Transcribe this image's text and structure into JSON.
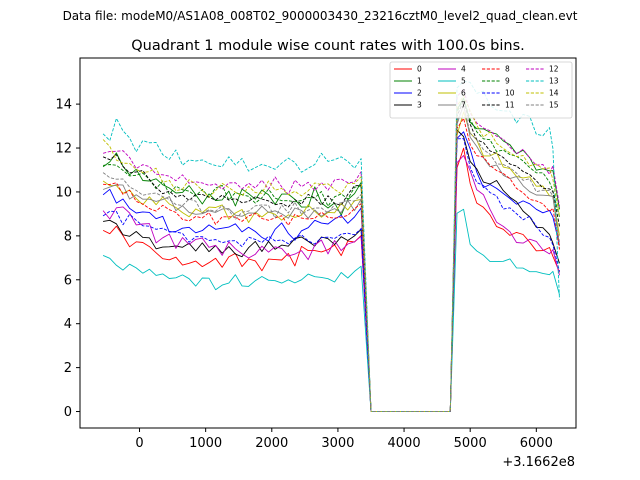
{
  "figure": {
    "suptitle": "Data file: modeM0/AS1A08_008T02_9000003430_23216cztM0_level2_quad_clean.evt"
  },
  "chart_data": {
    "type": "line",
    "title": "Quadrant 1 module wise count rates with 100.0s bins.",
    "xlabel": "",
    "ylabel": "",
    "x_offset_label": "+3.1662e8",
    "xlim": [
      -900,
      6600
    ],
    "ylim": [
      -0.75,
      16.1
    ],
    "xticks": [
      0,
      1000,
      2000,
      3000,
      4000,
      5000,
      6000
    ],
    "xtick_labels": [
      "0",
      "1000",
      "2000",
      "3000",
      "4000",
      "5000",
      "6000"
    ],
    "yticks": [
      0,
      2,
      4,
      6,
      8,
      10,
      12,
      14
    ],
    "ytick_labels": [
      "0",
      "2",
      "4",
      "6",
      "8",
      "10",
      "12",
      "14"
    ],
    "grid": false,
    "legend_position": "top-right",
    "gap": [
      3500,
      4700
    ],
    "x_seg1": [
      -550,
      -450,
      -350,
      -250,
      -150,
      -50,
      50,
      150,
      250,
      350,
      450,
      550,
      650,
      750,
      850,
      950,
      1050,
      1150,
      1250,
      1350,
      1450,
      1550,
      1650,
      1750,
      1850,
      1950,
      2050,
      2150,
      2250,
      2350,
      2450,
      2550,
      2650,
      2750,
      2850,
      2950,
      3050,
      3150,
      3250,
      3350,
      3500
    ],
    "x_seg2": [
      4700,
      4800,
      4900,
      5000,
      5100,
      5200,
      5300,
      5400,
      5500,
      5600,
      5700,
      5800,
      5900,
      6000,
      6100,
      6200,
      6250,
      6350
    ],
    "series": [
      {
        "name": "0",
        "color": "#ff0000",
        "dash": "solid",
        "rate1": [
          8.25,
          8.1,
          8.44,
          8.01,
          7.5,
          7.73,
          7.7,
          7.51,
          7.23,
          6.96,
          6.91,
          7.03,
          6.67,
          6.75,
          6.85,
          6.6,
          6.78,
          6.98,
          6.57,
          7.04,
          7.2,
          6.6,
          6.95,
          6.86,
          6.41,
          6.94,
          6.92,
          6.9,
          7.2,
          6.63,
          7.52,
          7.33,
          7.33,
          7.27,
          7.37,
          7.59,
          7.1,
          7.76,
          7.72,
          8.01,
          0.0
        ],
        "rate2": [
          0.0,
          11.1,
          11.99,
          10.38,
          9.49,
          9.3,
          8.96,
          8.42,
          8.3,
          8.02,
          8.16,
          8.06,
          7.71,
          7.32,
          7.33,
          7.47,
          7.07,
          6.34
        ]
      },
      {
        "name": "1",
        "color": "#008000",
        "dash": "solid",
        "rate1": [
          11.15,
          11.37,
          11.78,
          11.17,
          10.78,
          11.03,
          10.52,
          10.5,
          10.6,
          10.33,
          10.18,
          9.95,
          9.98,
          10.29,
          9.88,
          9.45,
          9.91,
          9.61,
          9.64,
          10.04,
          9.36,
          10.13,
          9.92,
          9.67,
          10.09,
          9.87,
          9.44,
          9.9,
          9.9,
          9.66,
          9.31,
          9.32,
          10.23,
          9.5,
          9.27,
          9.5,
          8.94,
          9.65,
          9.92,
          10.43,
          0.0
        ],
        "rate2": [
          0.0,
          13.75,
          14.27,
          13.17,
          12.88,
          12.87,
          12.72,
          12.64,
          12.32,
          12.15,
          11.74,
          11.9,
          11.56,
          10.99,
          11.06,
          10.96,
          10.97,
          9.21
        ]
      },
      {
        "name": "2",
        "color": "#0000ff",
        "dash": "solid",
        "rate1": [
          9.87,
          10.12,
          9.49,
          9.68,
          9.25,
          9.04,
          9.09,
          9.07,
          8.78,
          8.89,
          8.17,
          8.2,
          8.35,
          8.39,
          8.14,
          8.24,
          8.5,
          8.3,
          8.35,
          8.4,
          8.55,
          8.18,
          8.39,
          8.2,
          7.93,
          7.76,
          8.3,
          8.59,
          8.11,
          7.8,
          8.23,
          8.37,
          8.71,
          8.58,
          8.54,
          8.77,
          8.93,
          8.57,
          8.86,
          9.27,
          0.0
        ],
        "rate2": [
          0.0,
          12.44,
          12.74,
          11.95,
          10.9,
          10.2,
          10.34,
          10.16,
          9.93,
          9.7,
          9.44,
          9.59,
          9.46,
          9.21,
          9.05,
          9.16,
          8.86,
          7.56
        ]
      },
      {
        "name": "3",
        "color": "#000000",
        "dash": "solid",
        "rate1": [
          8.66,
          8.71,
          8.55,
          8.05,
          7.98,
          8.2,
          7.93,
          7.91,
          7.41,
          7.49,
          7.5,
          7.54,
          7.48,
          7.66,
          7.31,
          7.68,
          7.28,
          7.56,
          7.21,
          7.51,
          7.17,
          7.05,
          7.46,
          7.75,
          7.29,
          7.75,
          7.39,
          7.58,
          7.53,
          7.88,
          7.95,
          7.75,
          7.54,
          7.95,
          7.87,
          7.6,
          7.96,
          7.79,
          8.0,
          8.3,
          0.0
        ],
        "rate2": [
          0.0,
          12.82,
          12.52,
          11.38,
          11.05,
          10.45,
          10.36,
          10.52,
          10.06,
          9.76,
          9.55,
          9.13,
          8.87,
          8.39,
          8.37,
          8.06,
          7.67,
          6.75
        ]
      },
      {
        "name": "4",
        "color": "#bf00bf",
        "dash": "solid",
        "rate1": [
          9.15,
          8.77,
          9.28,
          9.32,
          9.04,
          8.5,
          8.54,
          8.56,
          7.68,
          7.91,
          8.08,
          7.43,
          7.92,
          7.61,
          7.84,
          7.9,
          7.48,
          7.57,
          7.11,
          7.72,
          7.41,
          7.18,
          6.99,
          7.16,
          7.53,
          7.26,
          7.5,
          7.43,
          7.08,
          7.17,
          7.33,
          6.92,
          7.58,
          7.81,
          7.18,
          7.79,
          7.33,
          7.63,
          7.73,
          7.98,
          0.0
        ],
        "rate2": [
          0.0,
          11.33,
          11.66,
          10.96,
          10.1,
          9.88,
          9.21,
          8.62,
          8.43,
          8.19,
          7.7,
          7.67,
          7.85,
          7.75,
          7.36,
          7.18,
          7.37,
          6.21
        ]
      },
      {
        "name": "5",
        "color": "#00bfbf",
        "dash": "solid",
        "rate1": [
          7.11,
          6.98,
          6.66,
          6.44,
          6.71,
          6.54,
          6.3,
          6.48,
          6.2,
          6.27,
          6.06,
          6.09,
          6.22,
          6.05,
          5.71,
          6.08,
          6.07,
          5.55,
          5.76,
          5.85,
          6.23,
          5.72,
          5.7,
          5.96,
          6.15,
          5.98,
          5.96,
          5.85,
          6.0,
          5.86,
          6.0,
          6.26,
          6.14,
          6.11,
          6.05,
          5.9,
          6.33,
          6.08,
          6.38,
          6.62,
          0.0
        ],
        "rate2": [
          0.0,
          9.03,
          9.21,
          7.61,
          7.31,
          7.12,
          6.83,
          6.83,
          6.84,
          6.95,
          6.54,
          6.53,
          6.37,
          6.37,
          6.29,
          6.23,
          6.38,
          5.32
        ]
      },
      {
        "name": "6",
        "color": "#bfbf00",
        "dash": "solid",
        "rate1": [
          10.5,
          10.29,
          10.29,
          9.94,
          10.09,
          9.7,
          9.42,
          9.78,
          9.42,
          9.77,
          9.45,
          9.29,
          9.06,
          8.87,
          9.23,
          9.06,
          9.31,
          9.29,
          9.41,
          8.76,
          9.04,
          9.2,
          8.61,
          9.08,
          8.86,
          9.09,
          8.98,
          8.72,
          8.96,
          8.84,
          8.94,
          9.41,
          9.12,
          8.85,
          9.07,
          9.05,
          9.48,
          9.18,
          9.6,
          9.66,
          0.0
        ],
        "rate2": [
          0.0,
          12.58,
          13.64,
          12.68,
          12.37,
          11.64,
          11.64,
          11.79,
          11.13,
          11.07,
          10.71,
          10.64,
          10.69,
          10.26,
          10.27,
          9.83,
          9.8,
          8.01
        ]
      },
      {
        "name": "7",
        "color": "#808080",
        "dash": "solid",
        "rate1": [
          10.11,
          10.22,
          10.33,
          10.31,
          9.68,
          9.87,
          9.67,
          9.67,
          9.57,
          9.65,
          9.79,
          9.15,
          9.37,
          9.07,
          8.98,
          9.01,
          9.14,
          9.07,
          9.22,
          9.24,
          8.94,
          8.89,
          9.04,
          9.03,
          9.35,
          9.07,
          9.14,
          9.0,
          8.8,
          9.27,
          9.16,
          8.8,
          9.18,
          8.89,
          9.11,
          9.24,
          9.06,
          9.61,
          9.15,
          9.67,
          0.0
        ],
        "rate2": [
          0.0,
          13.08,
          13.96,
          12.49,
          12.07,
          11.56,
          11.15,
          11.23,
          10.76,
          10.61,
          10.7,
          10.28,
          10.01,
          9.86,
          9.85,
          9.83,
          9.79,
          7.55
        ]
      },
      {
        "name": "8",
        "color": "#ff0000",
        "dash": "dashed",
        "rate1": [
          10.35,
          10.34,
          10.42,
          9.89,
          10.08,
          9.57,
          9.45,
          9.24,
          9.13,
          9.39,
          9.19,
          9.07,
          8.75,
          8.68,
          8.88,
          8.82,
          9.06,
          8.52,
          8.87,
          8.87,
          8.86,
          8.66,
          8.91,
          9.02,
          8.79,
          8.71,
          8.82,
          8.92,
          8.48,
          8.98,
          8.81,
          8.77,
          8.8,
          9.08,
          8.84,
          8.81,
          8.85,
          8.93,
          9.24,
          9.46,
          0.0
        ],
        "rate2": [
          0.0,
          12.89,
          13.35,
          12.15,
          11.65,
          11.59,
          11.21,
          10.97,
          10.84,
          10.61,
          10.16,
          9.96,
          9.66,
          9.59,
          9.46,
          9.11,
          9.26,
          7.38
        ]
      },
      {
        "name": "9",
        "color": "#008000",
        "dash": "dashed",
        "rate1": [
          11.21,
          11.25,
          11.22,
          10.98,
          10.73,
          10.76,
          10.86,
          10.57,
          10.15,
          10.5,
          9.9,
          10.26,
          10.1,
          10.04,
          9.81,
          10.12,
          9.76,
          10.18,
          10.3,
          9.64,
          9.97,
          9.88,
          9.8,
          9.49,
          9.74,
          10.13,
          9.72,
          9.6,
          9.6,
          9.55,
          9.61,
          9.75,
          9.73,
          10.02,
          9.35,
          9.78,
          9.91,
          9.68,
          10.21,
          10.28,
          0.0
        ],
        "rate2": [
          0.0,
          13.64,
          14.25,
          13.3,
          12.74,
          12.42,
          12.38,
          11.84,
          11.91,
          11.7,
          11.63,
          11.41,
          11.11,
          10.87,
          10.87,
          10.45,
          10.05,
          8.86
        ]
      },
      {
        "name": "10",
        "color": "#0000ff",
        "dash": "dashed",
        "rate1": [
          8.91,
          9.12,
          9.11,
          8.51,
          8.98,
          8.71,
          8.46,
          8.44,
          8.3,
          8.35,
          8.2,
          8.17,
          8.11,
          7.71,
          7.96,
          7.96,
          7.79,
          7.83,
          7.69,
          7.77,
          7.78,
          7.51,
          7.94,
          7.84,
          7.7,
          7.98,
          7.77,
          7.82,
          7.64,
          7.9,
          8.05,
          7.77,
          7.63,
          7.92,
          7.94,
          7.88,
          8.08,
          8.12,
          8.05,
          8.33,
          0.0
        ],
        "rate2": [
          0.0,
          12.42,
          12.43,
          11.12,
          10.43,
          10.29,
          9.97,
          9.82,
          9.22,
          9.28,
          9.01,
          8.73,
          8.89,
          8.44,
          8.04,
          7.93,
          7.59,
          6.38
        ]
      },
      {
        "name": "11",
        "color": "#000000",
        "dash": "dashed",
        "rate1": [
          11.6,
          11.47,
          11.7,
          11.16,
          10.87,
          10.91,
          10.98,
          10.56,
          10.21,
          9.92,
          10.04,
          9.77,
          9.87,
          9.61,
          9.88,
          9.89,
          9.75,
          9.63,
          9.86,
          9.63,
          9.7,
          9.51,
          9.57,
          9.78,
          9.68,
          9.59,
          9.42,
          9.48,
          9.32,
          9.65,
          9.44,
          9.89,
          9.72,
          9.39,
          9.83,
          9.47,
          9.39,
          9.89,
          10.28,
          10.3,
          0.0
        ],
        "rate2": [
          0.0,
          13.45,
          14.16,
          13.08,
          12.37,
          12.25,
          11.87,
          11.75,
          11.57,
          11.27,
          11.18,
          10.93,
          10.79,
          10.51,
          10.17,
          10.14,
          10.02,
          8.43
        ]
      },
      {
        "name": "12",
        "color": "#bf00bf",
        "dash": "dashed",
        "rate1": [
          11.76,
          11.84,
          11.85,
          11.88,
          11.57,
          11.07,
          11.24,
          11.16,
          10.81,
          10.78,
          10.72,
          10.51,
          10.78,
          10.4,
          10.46,
          10.41,
          10.3,
          10.36,
          10.12,
          10.41,
          10.42,
          10.14,
          10.4,
          10.18,
          10.54,
          10.13,
          10.68,
          10.23,
          9.89,
          10.54,
          10.24,
          10.44,
          10.05,
          10.43,
          10.08,
          10.55,
          10.59,
          10.42,
          10.45,
          10.92,
          0.0
        ],
        "rate2": [
          0.0,
          14.34,
          14.68,
          13.59,
          13.14,
          12.91,
          12.79,
          12.54,
          12.41,
          12.04,
          11.74,
          11.94,
          11.54,
          11.22,
          11.25,
          10.8,
          11.2,
          9.34
        ]
      },
      {
        "name": "13",
        "color": "#00bfbf",
        "dash": "dashed",
        "rate1": [
          12.65,
          12.34,
          13.35,
          12.78,
          12.46,
          11.83,
          12.34,
          12.24,
          12.25,
          11.7,
          11.48,
          11.91,
          11.22,
          11.46,
          11.41,
          11.46,
          11.3,
          11.2,
          11.15,
          11.6,
          11.23,
          11.53,
          10.95,
          11.11,
          11.26,
          11.16,
          11.03,
          11.31,
          11.54,
          11.34,
          10.9,
          11.08,
          11.25,
          11.76,
          11.39,
          11.47,
          11.6,
          11.39,
          11.08,
          11.52,
          0.0
        ],
        "rate2": [
          0.0,
          14.74,
          15.04,
          14.99,
          14.49,
          14.59,
          13.94,
          13.73,
          13.69,
          13.68,
          13.15,
          13.53,
          13.44,
          12.63,
          12.56,
          12.93,
          11.98,
          5.1
        ]
      },
      {
        "name": "14",
        "color": "#bfbf00",
        "dash": "dashed",
        "rate1": [
          12.39,
          12.07,
          11.45,
          11.31,
          11.3,
          11.03,
          10.88,
          10.93,
          11.08,
          10.43,
          10.53,
          10.05,
          10.13,
          10.56,
          10.36,
          10.07,
          9.76,
          10.06,
          10.39,
          10.2,
          9.99,
          9.82,
          10.25,
          9.97,
          9.94,
          10.5,
          10.08,
          10.16,
          9.87,
          10.03,
          9.82,
          10.05,
          10.41,
          10.33,
          10.37,
          10.11,
          9.92,
          10.38,
          10.39,
          10.69,
          0.0
        ],
        "rate2": [
          0.0,
          13.91,
          14.38,
          13.68,
          13.04,
          12.5,
          12.73,
          12.21,
          11.98,
          11.78,
          11.61,
          11.66,
          11.19,
          11.27,
          11.05,
          11.09,
          10.56,
          8.91
        ]
      },
      {
        "name": "15",
        "color": "#808080",
        "dash": "dashed",
        "rate1": [
          10.88,
          10.65,
          10.58,
          10.59,
          10.22,
          10.07,
          9.85,
          9.91,
          9.95,
          9.79,
          9.66,
          9.43,
          9.38,
          9.68,
          9.58,
          9.04,
          9.19,
          9.12,
          9.38,
          9.17,
          8.75,
          9.08,
          9.13,
          9.37,
          9.41,
          9.39,
          8.81,
          9.41,
          9.04,
          9.53,
          8.99,
          9.17,
          9.27,
          9.27,
          9.04,
          9.43,
          9.51,
          9.63,
          9.58,
          9.89,
          0.0
        ],
        "rate2": [
          0.0,
          13.23,
          13.94,
          12.67,
          12.37,
          11.93,
          11.72,
          11.28,
          11.25,
          11.11,
          10.86,
          10.53,
          10.6,
          10.01,
          10.08,
          10.06,
          9.81,
          7.68
        ]
      }
    ]
  }
}
